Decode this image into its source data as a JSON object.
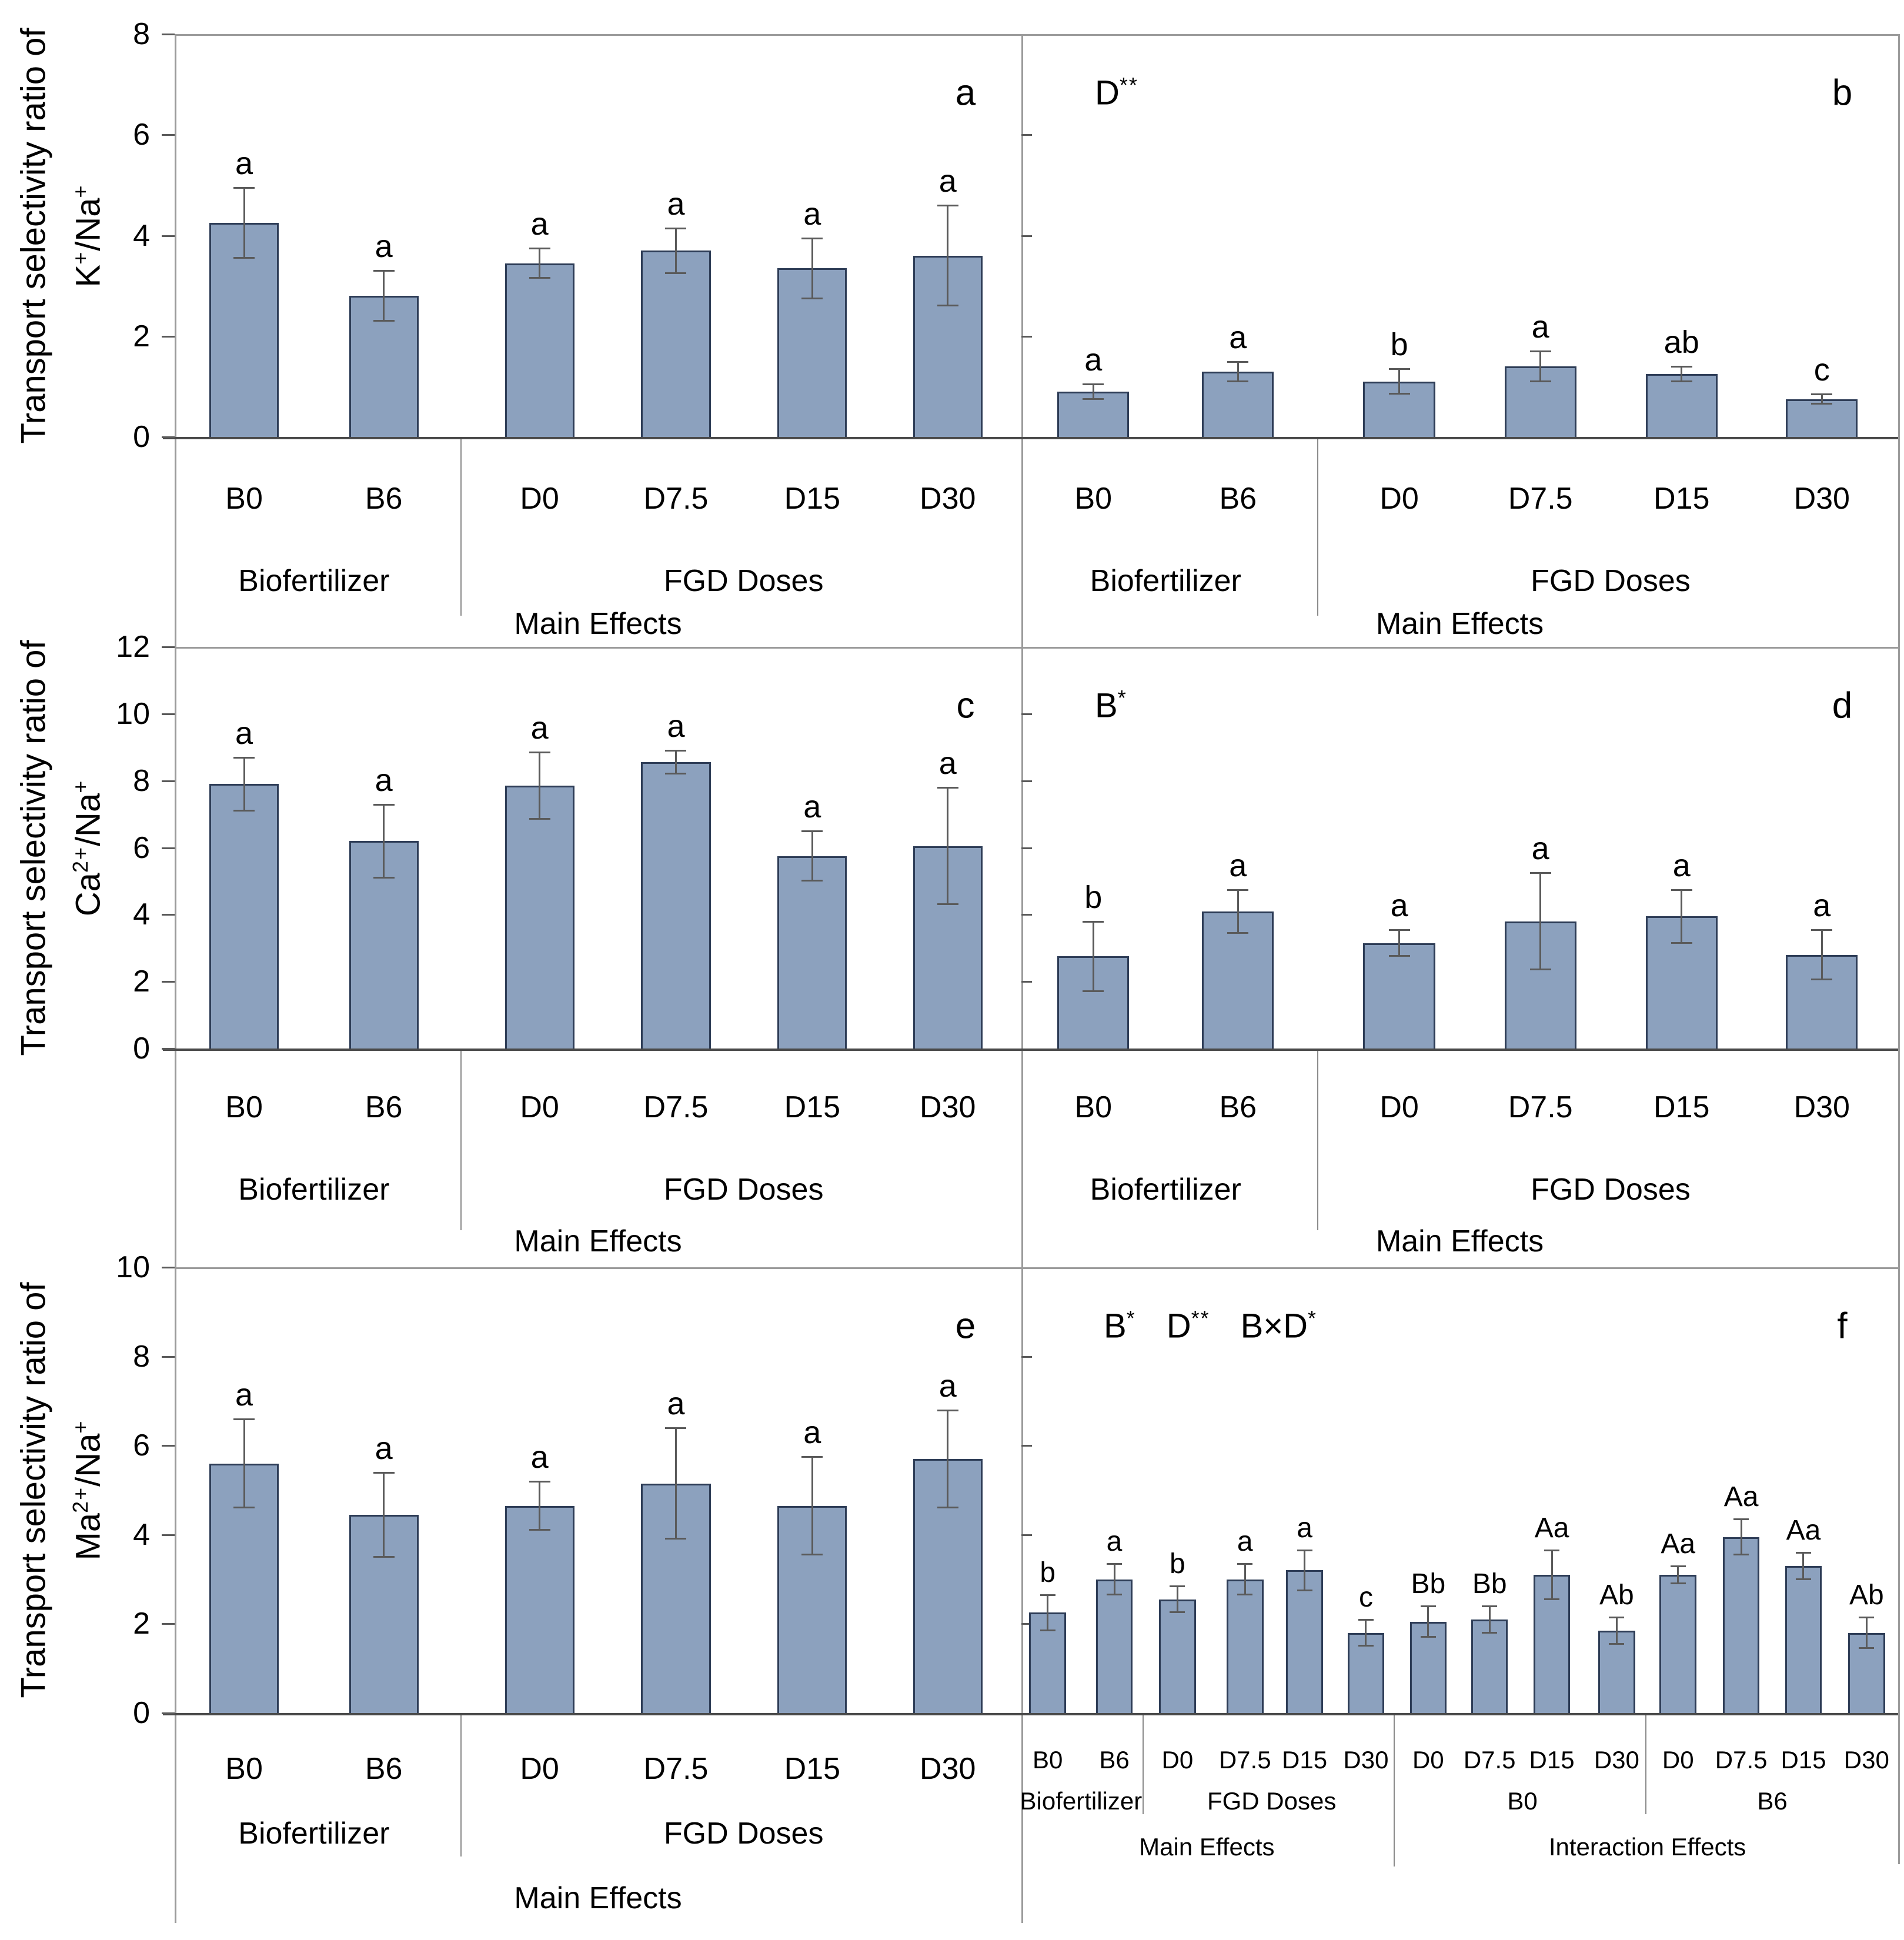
{
  "style": {
    "bar_fill": "#8ca1be",
    "bar_border": "#2e3d57",
    "error_bar_color": "#5a5a5a",
    "frame_color": "#9b9b9b",
    "axis_color": "#4a4a4a",
    "text_color": "#000000",
    "background": "#ffffff"
  },
  "chart_data": [
    {
      "id": "a",
      "type": "bar",
      "row": 0,
      "col": 0,
      "panel_letter": "a",
      "annotation": [],
      "y_axis": {
        "label": "Transport selectivity ratio of",
        "formula": [
          [
            "t",
            "K"
          ],
          [
            "s",
            "+"
          ],
          [
            "t",
            "/Na"
          ],
          [
            "s",
            "+"
          ]
        ],
        "ymin": 0,
        "ymax": 8,
        "ticks": [
          0,
          2,
          4,
          6,
          8
        ],
        "numbers_visible": true
      },
      "categories": [
        "B0",
        "B6",
        "D0",
        "D7.5",
        "D15",
        "D30"
      ],
      "values": [
        4.25,
        2.8,
        3.45,
        3.7,
        3.35,
        3.6
      ],
      "errors": [
        0.7,
        0.5,
        0.3,
        0.45,
        0.6,
        1.0
      ],
      "sig_letters": [
        "a",
        "a",
        "a",
        "a",
        "a",
        "a"
      ],
      "groups": [
        {
          "label": "Biofertilizer",
          "span": [
            0,
            1
          ]
        },
        {
          "label": "FGD Doses",
          "span": [
            2,
            5
          ]
        }
      ],
      "axis_titles": [
        {
          "label": "Main Effects",
          "span": [
            0,
            5
          ]
        }
      ]
    },
    {
      "id": "b",
      "type": "bar",
      "row": 0,
      "col": 1,
      "panel_letter": "b",
      "annotation": [
        [
          "t",
          "D"
        ],
        [
          "s",
          "**"
        ]
      ],
      "y_axis": {
        "label": "",
        "formula": [],
        "ymin": 0,
        "ymax": 8,
        "ticks": [
          0,
          2,
          4,
          6,
          8
        ],
        "numbers_visible": false
      },
      "categories": [
        "B0",
        "B6",
        "D0",
        "D7.5",
        "D15",
        "D30"
      ],
      "values": [
        0.9,
        1.3,
        1.1,
        1.4,
        1.25,
        0.75
      ],
      "errors": [
        0.15,
        0.2,
        0.25,
        0.3,
        0.15,
        0.1
      ],
      "sig_letters": [
        "a",
        "a",
        "b",
        "a",
        "ab",
        "c"
      ],
      "groups": [
        {
          "label": "Biofertilizer",
          "span": [
            0,
            1
          ]
        },
        {
          "label": "FGD Doses",
          "span": [
            2,
            5
          ]
        }
      ],
      "axis_titles": [
        {
          "label": "Main Effects",
          "span": [
            0,
            5
          ]
        }
      ]
    },
    {
      "id": "c",
      "type": "bar",
      "row": 1,
      "col": 0,
      "panel_letter": "c",
      "annotation": [],
      "y_axis": {
        "label": "Transport selectivity ratio of",
        "formula": [
          [
            "t",
            "Ca"
          ],
          [
            "s",
            "2+"
          ],
          [
            "t",
            "/Na"
          ],
          [
            "s",
            "+"
          ]
        ],
        "ymin": 0,
        "ymax": 12,
        "ticks": [
          0,
          2,
          4,
          6,
          8,
          10,
          12
        ],
        "numbers_visible": true
      },
      "categories": [
        "B0",
        "B6",
        "D0",
        "D7.5",
        "D15",
        "D30"
      ],
      "values": [
        7.9,
        6.2,
        7.85,
        8.55,
        5.75,
        6.05
      ],
      "errors": [
        0.8,
        1.1,
        1.0,
        0.35,
        0.75,
        1.75
      ],
      "sig_letters": [
        "a",
        "a",
        "a",
        "a",
        "a",
        "a"
      ],
      "groups": [
        {
          "label": "Biofertilizer",
          "span": [
            0,
            1
          ]
        },
        {
          "label": "FGD Doses",
          "span": [
            2,
            5
          ]
        }
      ],
      "axis_titles": [
        {
          "label": "Main Effects",
          "span": [
            0,
            5
          ]
        }
      ]
    },
    {
      "id": "d",
      "type": "bar",
      "row": 1,
      "col": 1,
      "panel_letter": "d",
      "annotation": [
        [
          "t",
          "B"
        ],
        [
          "s",
          "*"
        ]
      ],
      "y_axis": {
        "label": "",
        "formula": [],
        "ymin": 0,
        "ymax": 12,
        "ticks": [
          0,
          2,
          4,
          6,
          8,
          10,
          12
        ],
        "numbers_visible": false
      },
      "categories": [
        "B0",
        "B6",
        "D0",
        "D7.5",
        "D15",
        "D30"
      ],
      "values": [
        2.75,
        4.1,
        3.15,
        3.8,
        3.95,
        2.8
      ],
      "errors": [
        1.05,
        0.65,
        0.4,
        1.45,
        0.8,
        0.75
      ],
      "sig_letters": [
        "b",
        "a",
        "a",
        "a",
        "a",
        "a"
      ],
      "groups": [
        {
          "label": "Biofertilizer",
          "span": [
            0,
            1
          ]
        },
        {
          "label": "FGD Doses",
          "span": [
            2,
            5
          ]
        }
      ],
      "axis_titles": [
        {
          "label": "Main Effects",
          "span": [
            0,
            5
          ]
        }
      ]
    },
    {
      "id": "e",
      "type": "bar",
      "row": 2,
      "col": 0,
      "panel_letter": "e",
      "annotation": [],
      "y_axis": {
        "label": "Transport selectivity ratio of",
        "formula": [
          [
            "t",
            "Ma"
          ],
          [
            "s",
            "2+"
          ],
          [
            "t",
            "/Na"
          ],
          [
            "s",
            "+"
          ]
        ],
        "ymin": 0,
        "ymax": 10,
        "ticks": [
          0,
          2,
          4,
          6,
          8,
          10
        ],
        "numbers_visible": true
      },
      "categories": [
        "B0",
        "B6",
        "D0",
        "D7.5",
        "D15",
        "D30"
      ],
      "values": [
        5.6,
        4.45,
        4.65,
        5.15,
        4.65,
        5.7
      ],
      "errors": [
        1.0,
        0.95,
        0.55,
        1.25,
        1.1,
        1.1
      ],
      "sig_letters": [
        "a",
        "a",
        "a",
        "a",
        "a",
        "a"
      ],
      "groups": [
        {
          "label": "Biofertilizer",
          "span": [
            0,
            1
          ]
        },
        {
          "label": "FGD Doses",
          "span": [
            2,
            5
          ]
        }
      ],
      "axis_titles": [
        {
          "label": "Main Effects",
          "span": [
            0,
            5
          ]
        }
      ]
    },
    {
      "id": "f",
      "type": "bar",
      "row": 2,
      "col": 1,
      "panel_letter": "f",
      "annotation": [
        [
          "t",
          "B"
        ],
        [
          "s",
          "*"
        ],
        [
          "g",
          ""
        ],
        [
          "t",
          "D"
        ],
        [
          "s",
          "**"
        ],
        [
          "g",
          ""
        ],
        [
          "t",
          "B×D"
        ],
        [
          "s",
          "*"
        ]
      ],
      "y_axis": {
        "label": "",
        "formula": [],
        "ymin": 0,
        "ymax": 10,
        "ticks": [
          0,
          2,
          4,
          6,
          8,
          10
        ],
        "numbers_visible": false
      },
      "categories": [
        "B0",
        "B6",
        "D0",
        "D7.5",
        "D15",
        "D30",
        "D0",
        "D7.5",
        "D15",
        "D30",
        "D0",
        "D7.5",
        "D15",
        "D30"
      ],
      "values": [
        2.25,
        3.0,
        2.55,
        3.0,
        3.2,
        1.8,
        2.05,
        2.1,
        3.1,
        1.85,
        3.1,
        3.95,
        3.3,
        1.8
      ],
      "errors": [
        0.4,
        0.35,
        0.3,
        0.35,
        0.45,
        0.3,
        0.35,
        0.3,
        0.55,
        0.3,
        0.2,
        0.4,
        0.3,
        0.35
      ],
      "sig_letters": [
        "b",
        "a",
        "b",
        "a",
        "a",
        "c",
        "Bb",
        "Bb",
        "Aa",
        "Ab",
        "Aa",
        "Aa",
        "Aa",
        "Ab"
      ],
      "groups": [
        {
          "label": "Biofertilizer",
          "span": [
            0,
            1
          ]
        },
        {
          "label": "FGD Doses",
          "span": [
            2,
            5
          ]
        },
        {
          "label": "B0",
          "span": [
            6,
            9
          ]
        },
        {
          "label": "B6",
          "span": [
            10,
            13
          ]
        }
      ],
      "axis_titles": [
        {
          "label": "Main Effects",
          "span": [
            0,
            5
          ]
        },
        {
          "label": "Interaction Effects",
          "span": [
            6,
            13
          ]
        }
      ]
    }
  ]
}
